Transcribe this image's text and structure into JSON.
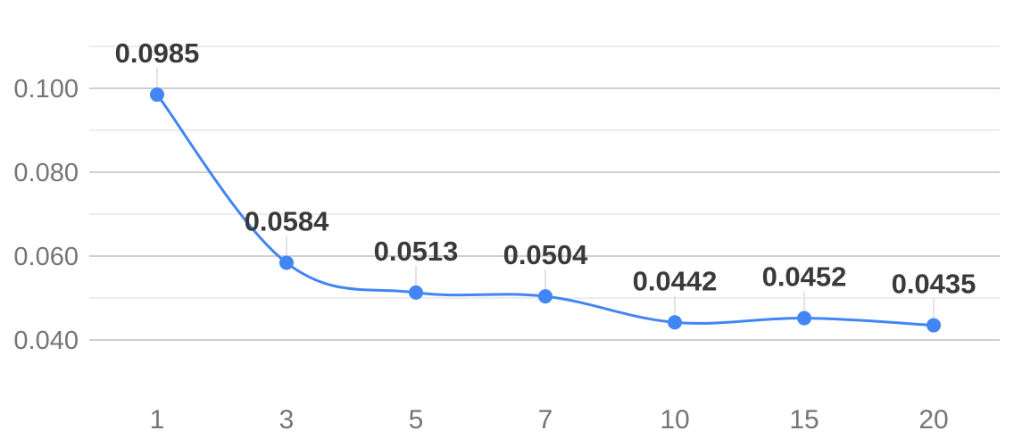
{
  "chart_data": {
    "type": "line",
    "categories": [
      "1",
      "3",
      "5",
      "7",
      "10",
      "15",
      "20"
    ],
    "series": [
      {
        "values": [
          0.0985,
          0.0584,
          0.0513,
          0.0504,
          0.0442,
          0.0452,
          0.0435
        ],
        "data_labels": [
          "0.0985",
          "0.0584",
          "0.0513",
          "0.0504",
          "0.0442",
          "0.0452",
          "0.0435"
        ]
      }
    ],
    "y_ticks": [
      {
        "value": 0.04,
        "label": "0.040"
      },
      {
        "value": 0.06,
        "label": "0.060"
      },
      {
        "value": 0.08,
        "label": "0.080"
      },
      {
        "value": 0.1,
        "label": "0.100"
      }
    ],
    "ylim": [
      0.03,
      0.11
    ],
    "minor_gridlines": [
      0.05,
      0.07,
      0.09,
      0.11
    ],
    "grid": true,
    "legend": "none",
    "smooth": true,
    "colors": {
      "series": "#4285f4",
      "major_grid": "#cfcfcf",
      "minor_grid": "#ececec",
      "tick_text": "#757575",
      "data_label_text": "#3a3a3a"
    }
  }
}
